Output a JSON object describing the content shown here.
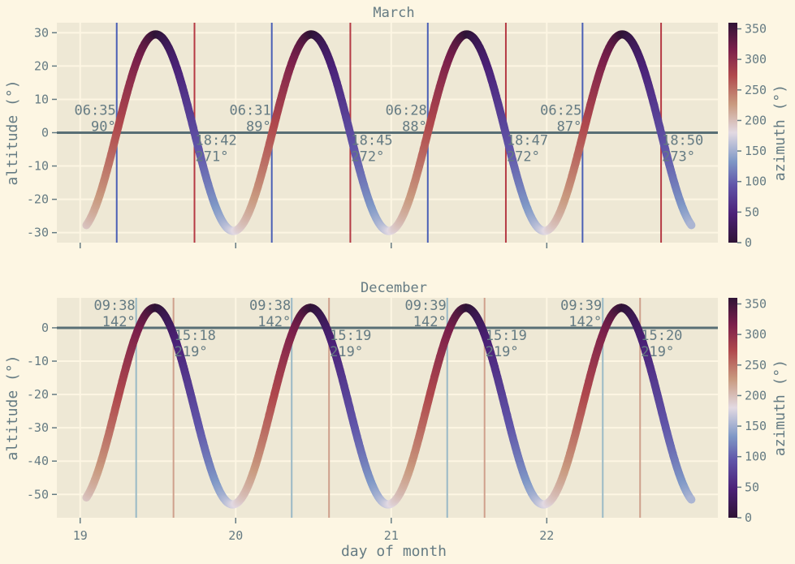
{
  "colors": {
    "background": "#fdf6e3",
    "axes_face": "#eee8d5",
    "grid": "#fdf6e3",
    "text": "#657b83",
    "horizon": "#586e75"
  },
  "colormap": "twilight_shifted",
  "chart_data": [
    {
      "type": "scatter",
      "title": "March",
      "xlabel": "",
      "ylabel": "altitude (°)",
      "xlim": [
        18.85,
        23.1
      ],
      "ylim": [
        -33,
        33
      ],
      "xticks": [
        19,
        20,
        21,
        22
      ],
      "xtick_labels_visible": false,
      "yticks": [
        -30,
        -20,
        -10,
        0,
        10,
        20,
        30
      ],
      "grid": true,
      "colorbar": {
        "label": "azimuth (°)",
        "range": [
          0,
          360
        ],
        "ticks": [
          0,
          50,
          100,
          150,
          200,
          250,
          300,
          350
        ]
      },
      "horizon_line": 0,
      "curve": {
        "x_start": 19.04,
        "x_end": 22.93,
        "amplitude": 29.5,
        "mean": 0,
        "offset": 0,
        "period_days": 1,
        "peak_offset": 0.485
      },
      "events": [
        {
          "type": "sunrise",
          "x": 19.235,
          "time": "06:35",
          "azimuth": "90°"
        },
        {
          "type": "sunset",
          "x": 19.735,
          "time": "18:42",
          "azimuth": "271°"
        },
        {
          "type": "sunrise",
          "x": 20.232,
          "time": "06:31",
          "azimuth": "89°"
        },
        {
          "type": "sunset",
          "x": 20.737,
          "time": "18:45",
          "azimuth": "272°"
        },
        {
          "type": "sunrise",
          "x": 21.235,
          "time": "06:28",
          "azimuth": "88°"
        },
        {
          "type": "sunset",
          "x": 21.737,
          "time": "18:47",
          "azimuth": "272°"
        },
        {
          "type": "sunrise",
          "x": 22.23,
          "time": "06:25",
          "azimuth": "87°"
        },
        {
          "type": "sunset",
          "x": 22.735,
          "time": "18:50",
          "azimuth": "273°"
        }
      ]
    },
    {
      "type": "scatter",
      "title": "December",
      "xlabel": "day of month",
      "ylabel": "altitude (°)",
      "xlim": [
        18.85,
        23.1
      ],
      "ylim": [
        -57,
        9
      ],
      "xticks": [
        19,
        20,
        21,
        22
      ],
      "xtick_labels": [
        "19",
        "20",
        "21",
        "22"
      ],
      "yticks": [
        -50,
        -40,
        -30,
        -20,
        -10,
        0
      ],
      "grid": true,
      "colorbar": {
        "label": "azimuth (°)",
        "range": [
          0,
          360
        ],
        "ticks": [
          0,
          50,
          100,
          150,
          200,
          250,
          300,
          350
        ]
      },
      "horizon_line": 0,
      "curve": {
        "x_start": 19.04,
        "x_end": 22.93,
        "amplitude": 29.5,
        "mean": -23.5,
        "offset": 0,
        "period_days": 1,
        "peak_offset": 0.48
      },
      "events": [
        {
          "type": "sunrise",
          "x": 19.36,
          "time": "09:38",
          "azimuth": "142°"
        },
        {
          "type": "sunset",
          "x": 19.6,
          "time": "15:18",
          "azimuth": "219°"
        },
        {
          "type": "sunrise",
          "x": 20.36,
          "time": "09:38",
          "azimuth": "142°"
        },
        {
          "type": "sunset",
          "x": 20.6,
          "time": "15:19",
          "azimuth": "219°"
        },
        {
          "type": "sunrise",
          "x": 21.36,
          "time": "09:39",
          "azimuth": "142°"
        },
        {
          "type": "sunset",
          "x": 21.6,
          "time": "15:19",
          "azimuth": "219°"
        },
        {
          "type": "sunrise",
          "x": 22.36,
          "time": "09:39",
          "azimuth": "142°"
        },
        {
          "type": "sunset",
          "x": 22.6,
          "time": "15:20",
          "azimuth": "219°"
        }
      ]
    }
  ]
}
